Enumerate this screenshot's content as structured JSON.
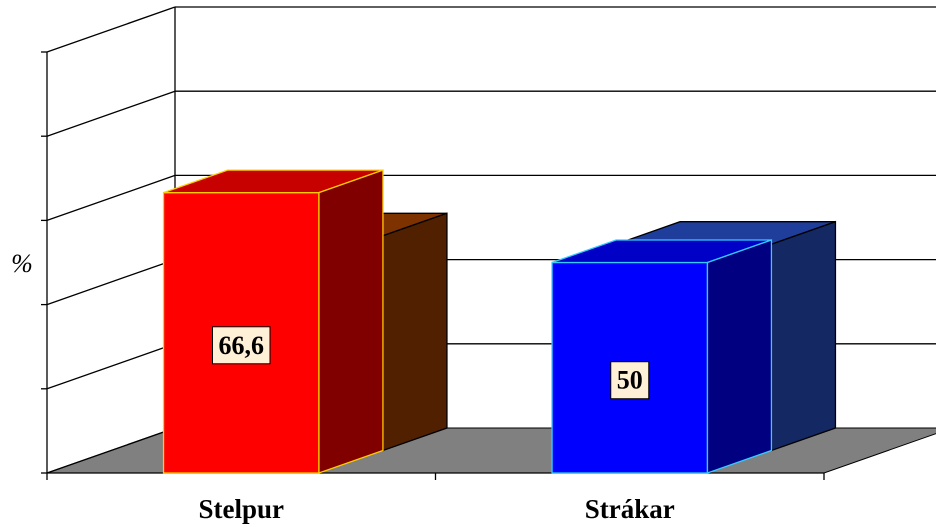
{
  "chart_data": {
    "type": "bar3d",
    "y_label": "%",
    "categories": [
      "Stelpur",
      "Strákar"
    ],
    "ylim": [
      0,
      100
    ],
    "yticks": [
      0,
      20,
      40,
      60,
      80,
      100
    ],
    "grid": true,
    "series": [
      {
        "colors": [
          "#ff0000",
          "#0000ff"
        ],
        "edge_colors": [
          "#ffcc00",
          "#33ccff"
        ],
        "values": [
          66.6,
          50
        ],
        "value_labels": [
          "66,6",
          "50"
        ]
      },
      {
        "colors": [
          "#a04000",
          "#2850c8"
        ],
        "edge_colors": [
          "#000000",
          "#000000"
        ],
        "values": [
          51,
          49
        ]
      }
    ]
  }
}
